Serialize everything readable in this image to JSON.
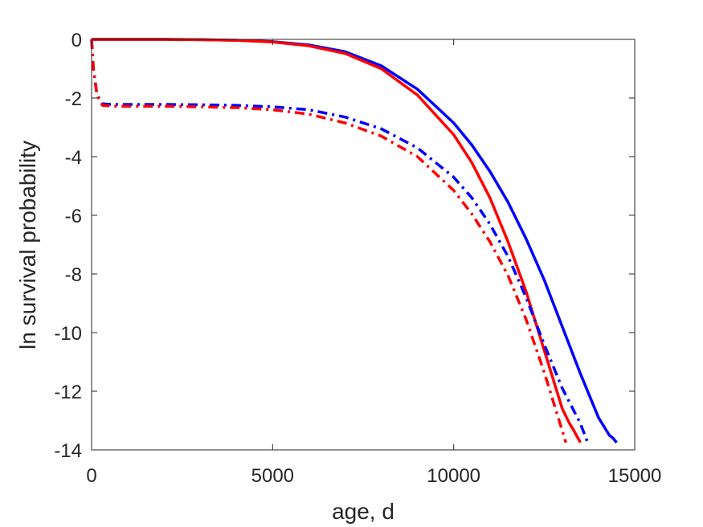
{
  "chart_data": {
    "type": "line",
    "title": "",
    "xlabel": "age, d",
    "ylabel": "ln survival probability",
    "xlim": [
      0,
      15000
    ],
    "ylim": [
      -14,
      0
    ],
    "xticks": [
      0,
      5000,
      10000,
      15000
    ],
    "yticks": [
      0,
      -2,
      -4,
      -6,
      -8,
      -10,
      -12,
      -14
    ],
    "grid": false,
    "legend": "none",
    "series": [
      {
        "color": "#0000ff",
        "style": "solid",
        "x": [
          0,
          1000,
          2000,
          3000,
          4000,
          5000,
          6000,
          7000,
          8000,
          9000,
          10000,
          10500,
          11000,
          11500,
          12000,
          12500,
          13000,
          13500,
          14000,
          14300,
          14400,
          14500
        ],
        "y": [
          0,
          0,
          0,
          -0.01,
          -0.03,
          -0.08,
          -0.19,
          -0.42,
          -0.9,
          -1.7,
          -2.85,
          -3.6,
          -4.5,
          -5.55,
          -6.8,
          -8.2,
          -9.8,
          -11.4,
          -12.9,
          -13.5,
          -13.6,
          -13.75
        ]
      },
      {
        "color": "#ff0000",
        "style": "solid",
        "x": [
          0,
          1000,
          2000,
          3000,
          4000,
          5000,
          6000,
          7000,
          8000,
          9000,
          10000,
          10500,
          11000,
          11500,
          12000,
          12500,
          13000,
          13200,
          13300,
          13500
        ],
        "y": [
          0,
          0,
          0,
          -0.01,
          -0.03,
          -0.09,
          -0.22,
          -0.48,
          -1.0,
          -1.9,
          -3.25,
          -4.2,
          -5.4,
          -6.9,
          -8.6,
          -10.6,
          -12.6,
          -13.1,
          -13.3,
          -13.75
        ]
      },
      {
        "color": "#0000ff",
        "style": "dashdot",
        "x": [
          0,
          50,
          150,
          300,
          600,
          1000,
          2000,
          3000,
          4000,
          5000,
          6000,
          7000,
          8000,
          9000,
          10000,
          10500,
          11000,
          11500,
          12000,
          12500,
          13000,
          13500,
          13700
        ],
        "y": [
          0,
          -1.0,
          -1.9,
          -2.2,
          -2.22,
          -2.22,
          -2.22,
          -2.23,
          -2.25,
          -2.3,
          -2.4,
          -2.65,
          -3.05,
          -3.7,
          -4.7,
          -5.4,
          -6.3,
          -7.4,
          -8.8,
          -10.4,
          -11.9,
          -13.1,
          -13.75
        ]
      },
      {
        "color": "#ff0000",
        "style": "dashdot",
        "x": [
          0,
          50,
          150,
          300,
          600,
          1000,
          2000,
          3000,
          4000,
          5000,
          6000,
          7000,
          8000,
          9000,
          10000,
          10500,
          11000,
          11500,
          12000,
          12500,
          13000,
          13100
        ],
        "y": [
          0,
          -1.0,
          -1.9,
          -2.25,
          -2.28,
          -2.28,
          -2.28,
          -2.3,
          -2.33,
          -2.4,
          -2.55,
          -2.85,
          -3.3,
          -4.0,
          -5.15,
          -5.95,
          -6.9,
          -8.05,
          -9.55,
          -11.35,
          -13.35,
          -13.75
        ]
      }
    ]
  }
}
